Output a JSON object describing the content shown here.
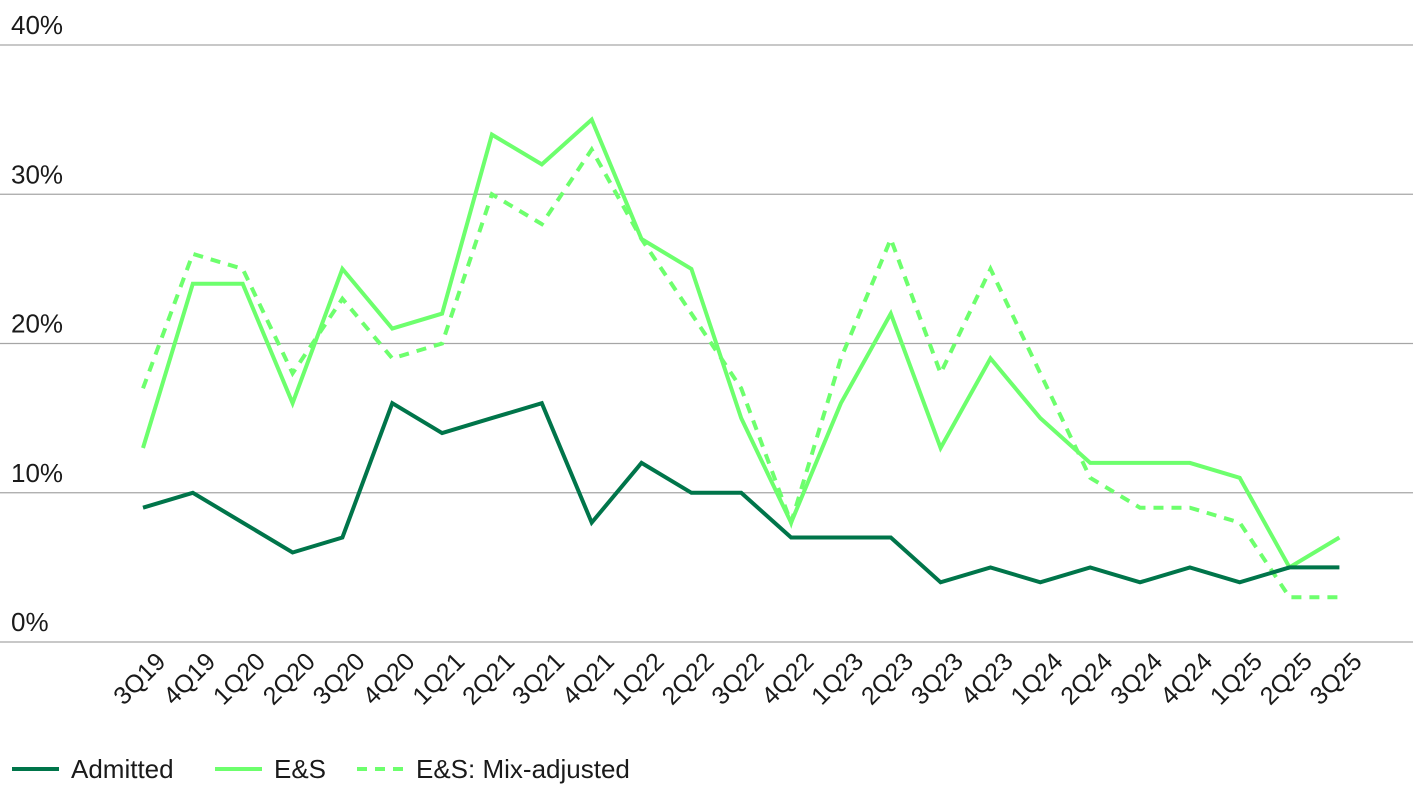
{
  "chart_data": {
    "type": "line",
    "title": "",
    "xlabel": "",
    "ylabel": "",
    "ylim": [
      0,
      40
    ],
    "yticks": [
      "0%",
      "10%",
      "20%",
      "30%",
      "40%"
    ],
    "yticks_values": [
      0,
      10,
      20,
      30,
      40
    ],
    "grid": true,
    "legend_position": "bottom-left",
    "categories": [
      "3Q19",
      "4Q19",
      "1Q20",
      "2Q20",
      "3Q20",
      "4Q20",
      "1Q21",
      "2Q21",
      "3Q21",
      "4Q21",
      "1Q22",
      "2Q22",
      "3Q22",
      "4Q22",
      "1Q23",
      "2Q23",
      "3Q23",
      "4Q23",
      "1Q24",
      "2Q24",
      "3Q24",
      "4Q24",
      "1Q25",
      "2Q25",
      "3Q25"
    ],
    "series": [
      {
        "name": "Admitted",
        "color": "#00754a",
        "dash": "solid",
        "values": [
          9,
          10,
          8,
          6,
          7,
          16,
          14,
          15,
          16,
          8,
          12,
          10,
          10,
          7,
          7,
          7,
          4,
          5,
          4,
          5,
          4,
          5,
          4,
          5,
          5
        ]
      },
      {
        "name": "E&S",
        "color": "#6dff6d",
        "dash": "solid",
        "values": [
          13,
          24,
          24,
          16,
          25,
          21,
          22,
          34,
          32,
          35,
          27,
          25,
          15,
          8,
          16,
          22,
          13,
          19,
          15,
          12,
          12,
          12,
          11,
          5,
          7
        ]
      },
      {
        "name": "E&S: Mix-adjusted",
        "color": "#6dff6d",
        "dash": "dashed",
        "values": [
          17,
          26,
          25,
          18,
          23,
          19,
          20,
          30,
          28,
          33,
          27,
          22,
          17,
          8,
          19,
          27,
          18,
          25,
          18,
          11,
          9,
          9,
          8,
          3,
          3
        ]
      }
    ]
  }
}
